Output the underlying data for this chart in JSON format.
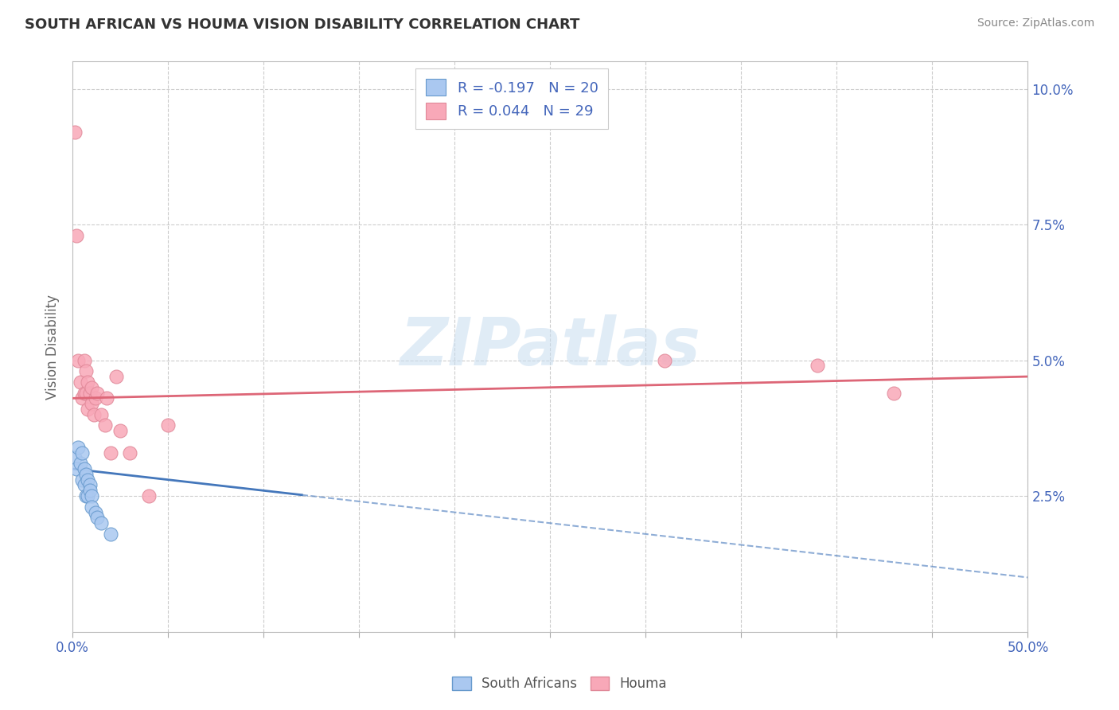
{
  "title": "SOUTH AFRICAN VS HOUMA VISION DISABILITY CORRELATION CHART",
  "source": "Source: ZipAtlas.com",
  "ylabel": "Vision Disability",
  "xlim": [
    0.0,
    0.5
  ],
  "ylim": [
    0.0,
    0.105
  ],
  "xtick_positions": [
    0.0,
    0.05,
    0.1,
    0.15,
    0.2,
    0.25,
    0.3,
    0.35,
    0.4,
    0.45,
    0.5
  ],
  "xticklabels": [
    "0.0%",
    "",
    "",
    "",
    "",
    "",
    "",
    "",
    "",
    "",
    "50.0%"
  ],
  "ytick_positions": [
    0.0,
    0.025,
    0.05,
    0.075,
    0.1
  ],
  "yticklabels_right": [
    "",
    "2.5%",
    "5.0%",
    "7.5%",
    "10.0%"
  ],
  "legend_r1": "R = -0.197   N = 20",
  "legend_r2": "R = 0.044   N = 29",
  "color_sa": "#aac8f0",
  "color_sa_edge": "#6699cc",
  "color_houma": "#f8a8b8",
  "color_houma_edge": "#e08898",
  "color_sa_line": "#4477bb",
  "color_houma_line": "#dd6677",
  "color_grid": "#cccccc",
  "watermark": "ZIPatlas",
  "background_color": "#ffffff",
  "title_color": "#333333",
  "source_color": "#888888",
  "tick_label_color": "#4466bb",
  "ylabel_color": "#666666",
  "sa_x": [
    0.001,
    0.002,
    0.003,
    0.004,
    0.005,
    0.005,
    0.006,
    0.006,
    0.007,
    0.007,
    0.008,
    0.008,
    0.009,
    0.009,
    0.01,
    0.01,
    0.012,
    0.013,
    0.015,
    0.02
  ],
  "sa_y": [
    0.032,
    0.03,
    0.034,
    0.031,
    0.033,
    0.028,
    0.03,
    0.027,
    0.029,
    0.025,
    0.028,
    0.025,
    0.027,
    0.026,
    0.025,
    0.023,
    0.022,
    0.021,
    0.02,
    0.018
  ],
  "houma_x": [
    0.001,
    0.002,
    0.003,
    0.004,
    0.005,
    0.006,
    0.006,
    0.007,
    0.007,
    0.008,
    0.008,
    0.009,
    0.01,
    0.01,
    0.011,
    0.012,
    0.013,
    0.015,
    0.017,
    0.018,
    0.02,
    0.023,
    0.025,
    0.03,
    0.04,
    0.05,
    0.31,
    0.39,
    0.43
  ],
  "houma_y": [
    0.092,
    0.073,
    0.05,
    0.046,
    0.043,
    0.05,
    0.044,
    0.048,
    0.044,
    0.046,
    0.041,
    0.044,
    0.045,
    0.042,
    0.04,
    0.043,
    0.044,
    0.04,
    0.038,
    0.043,
    0.033,
    0.047,
    0.037,
    0.033,
    0.025,
    0.038,
    0.05,
    0.049,
    0.044
  ]
}
